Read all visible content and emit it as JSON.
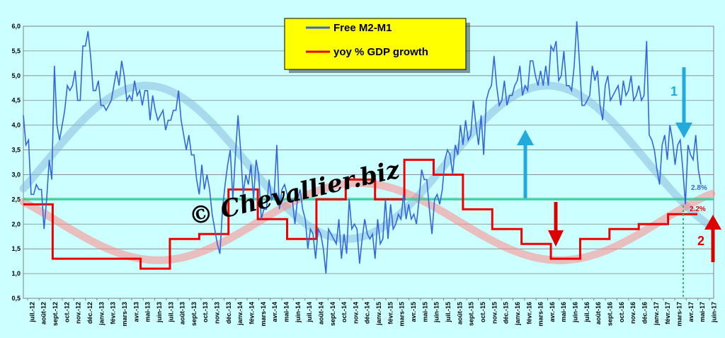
{
  "chart_data": {
    "type": "line",
    "ylim": [
      0.5,
      6.0
    ],
    "y_ticks": [
      "6,0",
      "5,5",
      "5,0",
      "4,5",
      "4,0",
      "3,5",
      "3,0",
      "2,5",
      "2,0",
      "1,5",
      "1,0",
      "0,5"
    ],
    "y_tick_values": [
      6.0,
      5.5,
      5.0,
      4.5,
      4.0,
      3.5,
      3.0,
      2.5,
      2.0,
      1.5,
      1.0,
      0.5
    ],
    "x_labels": [
      "juil.-12",
      "août-12",
      "sept.-12",
      "oct.-12",
      "nov.-12",
      "déc.-12",
      "janv.-13",
      "févr.-13",
      "mars-13",
      "avr.-13",
      "mai-13",
      "juin-13",
      "juil.-13",
      "août-13",
      "sept.-13",
      "oct.-13",
      "nov.-13",
      "déc.-13",
      "janv.-14",
      "févr.-14",
      "mars-14",
      "avr.-14",
      "mai-14",
      "juin-14",
      "juil.-14",
      "août-14",
      "sept.-14",
      "oct.-14",
      "nov.-14",
      "déc.-14",
      "janv.-15",
      "févr.-15",
      "mars-15",
      "avr.-15",
      "mai-15",
      "juin-15",
      "juil.-15",
      "août-15",
      "sept.-15",
      "oct.-15",
      "nov.-15",
      "déc.-15",
      "janv.-16",
      "févr.-16",
      "mars-16",
      "avr.-16",
      "mai-16",
      "juin-16",
      "juil.-16",
      "août-16",
      "sept.-16",
      "oct.-16",
      "nov.-16",
      "déc.-16",
      "janv.-17",
      "févr.-17",
      "mars-17",
      "avr.-17",
      "mai-17",
      "juin-17"
    ],
    "grid": true,
    "legend_position": "top-center",
    "series": [
      {
        "name": "Free M2-M1",
        "color": "#3366dd",
        "values": [
          4.2,
          3.6,
          3.7,
          2.6,
          2.6,
          2.8,
          2.7,
          2.7,
          1.9,
          2.5,
          3.3,
          2.9,
          5.2,
          4.0,
          3.7,
          4.0,
          4.3,
          4.8,
          4.7,
          4.8,
          5.1,
          4.5,
          4.5,
          5.6,
          5.6,
          5.9,
          5.4,
          4.7,
          4.7,
          4.9,
          4.4,
          4.4,
          4.3,
          4.4,
          4.5,
          4.8,
          5.1,
          4.8,
          5.3,
          5.0,
          4.5,
          4.6,
          4.5,
          4.9,
          4.6,
          4.7,
          4.4,
          4.7,
          4.7,
          4.1,
          4.6,
          4.3,
          4.1,
          4.2,
          4.3,
          3.9,
          4.1,
          4.1,
          4.3,
          4.3,
          4.7,
          4.1,
          3.8,
          3.5,
          3.8,
          3.4,
          3.4,
          2.9,
          2.6,
          3.2,
          2.7,
          3.0,
          2.7,
          2.2,
          1.9,
          1.6,
          1.4,
          2.3,
          2.8,
          3.2,
          3.5,
          2.5,
          3.4,
          4.2,
          3.5,
          2.6,
          3.0,
          2.8,
          3.2,
          2.5,
          3.3,
          3.0,
          2.1,
          2.3,
          2.3,
          2.9,
          2.5,
          2.6,
          3.6,
          2.3,
          2.7,
          2.8,
          2.6,
          2.5,
          2.5,
          2.0,
          2.5,
          2.7,
          2.3,
          2.1,
          1.5,
          1.9,
          1.8,
          1.3,
          1.9,
          1.8,
          1.5,
          1.0,
          1.9,
          1.8,
          1.7,
          1.6,
          2.1,
          1.3,
          1.8,
          1.4,
          2.5,
          1.9,
          2.0,
          1.9,
          1.2,
          1.7,
          2.1,
          1.8,
          1.7,
          1.8,
          1.3,
          2.1,
          1.6,
          1.7,
          2.5,
          1.7,
          2.4,
          1.9,
          2.0,
          2.2,
          2.1,
          2.6,
          2.1,
          2.4,
          2.1,
          2.2,
          2.0,
          2.5,
          3.1,
          2.9,
          2.9,
          2.3,
          1.8,
          2.5,
          2.6,
          2.4,
          2.7,
          3.3,
          3.5,
          3.4,
          3.0,
          3.6,
          3.4,
          4.0,
          3.6,
          4.1,
          3.7,
          3.8,
          4.5,
          4.0,
          3.6,
          4.2,
          3.4,
          4.5,
          4.7,
          4.8,
          5.4,
          4.8,
          4.4,
          4.5,
          4.9,
          4.4,
          4.6,
          4.6,
          4.8,
          4.9,
          5.2,
          4.6,
          4.8,
          4.7,
          5.3,
          5.3,
          5.0,
          4.8,
          5.1,
          4.8,
          5.2,
          4.8,
          5.6,
          5.5,
          5.7,
          4.9,
          5.0,
          5.5,
          4.8,
          4.8,
          4.7,
          5.2,
          6.1,
          5.3,
          4.4,
          4.4,
          4.5,
          4.6,
          5.2,
          4.9,
          5.1,
          4.4,
          4.1,
          4.8,
          5.0,
          4.5,
          4.6,
          4.7,
          4.8,
          4.4,
          4.9,
          4.6,
          4.7,
          5.0,
          4.5,
          4.6,
          4.8,
          4.5,
          4.6,
          5.7,
          3.8,
          3.7,
          3.5,
          3.1,
          2.8,
          3.6,
          3.8,
          3.3,
          4.0,
          3.7,
          3.2,
          3.6,
          3.7,
          3.1,
          2.4,
          3.6,
          3.4,
          3.3,
          3.8,
          3.1,
          2.8
        ]
      },
      {
        "name": "yoy % GDP growth",
        "color": "#ee0000",
        "values": [
          2.4,
          2.4,
          2.4,
          1.3,
          1.3,
          1.3,
          1.3,
          1.3,
          1.3,
          1.3,
          1.3,
          1.3,
          1.1,
          1.1,
          1.1,
          1.7,
          1.7,
          1.7,
          1.8,
          1.8,
          1.8,
          2.7,
          2.7,
          2.7,
          2.1,
          2.1,
          2.1,
          1.7,
          1.7,
          1.7,
          2.5,
          2.5,
          2.5,
          2.9,
          2.9,
          2.9,
          2.5,
          2.5,
          2.5,
          3.3,
          3.3,
          3.3,
          3.0,
          3.0,
          3.0,
          2.3,
          2.3,
          2.3,
          1.9,
          1.9,
          1.9,
          1.6,
          1.6,
          1.6,
          1.3,
          1.3,
          1.3,
          1.7,
          1.7,
          1.7,
          1.9,
          1.9,
          1.9,
          2.0,
          2.0,
          2.0,
          2.2,
          2.2,
          2.2
        ]
      }
    ],
    "annotations": {
      "watermark": "© Chevallier.biz",
      "label_blue_end": "2.8%",
      "label_red_end": "2.2%",
      "marker_1": "1",
      "marker_2": "2"
    }
  }
}
